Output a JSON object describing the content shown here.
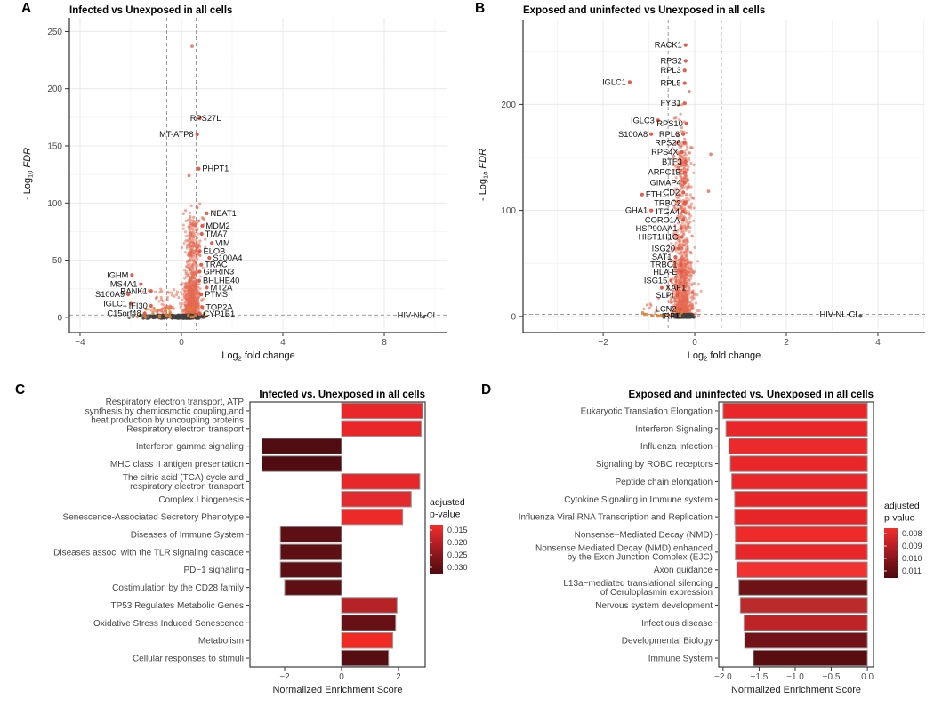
{
  "figure": {
    "background": "#ffffff"
  },
  "chart_data": [
    {
      "id": "A",
      "panel_letter": "A",
      "type": "scatter",
      "title": "Infected vs Unexposed in all cells",
      "xlabel": {
        "pre": "Log",
        "sub": "2",
        "post": " fold change"
      },
      "ylabel": {
        "pre": "- Log",
        "sub": "10",
        "post": " ",
        "italic": "FDR"
      },
      "xlim": [
        -4.42,
        10.49
      ],
      "ylim": [
        -11,
        262
      ],
      "xticks": [
        {
          "v": -4,
          "label": "−4"
        },
        {
          "v": 0,
          "label": "0"
        },
        {
          "v": 4,
          "label": "4"
        },
        {
          "v": 8,
          "label": "8"
        }
      ],
      "yticks": [
        {
          "v": 0,
          "label": "0"
        },
        {
          "v": 50,
          "label": "50"
        },
        {
          "v": 100,
          "label": "100"
        },
        {
          "v": 150,
          "label": "150"
        },
        {
          "v": 200,
          "label": "200"
        },
        {
          "v": 250,
          "label": "250"
        }
      ],
      "xminor": [
        -2,
        2,
        6,
        10
      ],
      "yminor": [
        25,
        75,
        125,
        175,
        225
      ],
      "vlines": [
        -0.58,
        0.58
      ],
      "hline": 2,
      "colors": {
        "point": "#e66a52",
        "labeled": "#e25540",
        "gray": "#404040",
        "orange": "#dd7f2f"
      },
      "seed": 11,
      "clusters": [
        {
          "n": 750,
          "cx": 0.42,
          "sx": 0.13,
          "y0": 0,
          "y1": 85,
          "pow": 2.6,
          "color": "#e66a52",
          "op": 0.5,
          "r": 1.6
        },
        {
          "n": 300,
          "cx": 0.4,
          "sx": 0.18,
          "y0": 0,
          "y1": 30,
          "pow": 1.6,
          "color": "#e66a52",
          "op": 0.5,
          "r": 1.6
        },
        {
          "n": 40,
          "cx": 0.55,
          "sx": 0.25,
          "y0": 55,
          "y1": 100,
          "pow": 1.2,
          "color": "#e66a52",
          "op": 0.6,
          "r": 1.6
        },
        {
          "n": 90,
          "cx": -0.75,
          "sx": 0.32,
          "y0": 0,
          "y1": 26,
          "pow": 2.0,
          "color": "#e66a52",
          "op": 0.55,
          "r": 1.6
        },
        {
          "n": 260,
          "cx": 0.2,
          "sx": 0.28,
          "y0": -1,
          "y1": 2,
          "pow": 1,
          "color": "#404040",
          "op": 0.75,
          "r": 1.7
        },
        {
          "n": 70,
          "cx": -0.95,
          "sx": 0.35,
          "y0": -1,
          "y1": 2,
          "pow": 1,
          "color": "#404040",
          "op": 0.7,
          "r": 1.7
        },
        {
          "n": 26,
          "cx": -0.3,
          "sx": 0.75,
          "y0": 0,
          "y1": 9,
          "pow": 1.6,
          "color": "#dd7f2f",
          "op": 0.85,
          "r": 1.7
        }
      ],
      "extra_points": [
        [
          0.42,
          237
        ],
        [
          0.3,
          124
        ],
        [
          0.62,
          96
        ]
      ],
      "genes": [
        [
          "RPS27L",
          0.72,
          174,
          "m",
          {
            "tx": 0.95
          }
        ],
        [
          "MT-ATP8",
          0.62,
          160,
          "e"
        ],
        [
          "PHPT1",
          0.68,
          130,
          "s"
        ],
        [
          "NEAT1",
          1.0,
          91,
          "s"
        ],
        [
          "MDM2",
          0.82,
          80,
          "s"
        ],
        [
          "TMA7",
          0.8,
          73,
          "s"
        ],
        [
          "VIM",
          1.2,
          65,
          "s"
        ],
        [
          "ELOB",
          0.72,
          58,
          "s"
        ],
        [
          "S100A4",
          1.1,
          52,
          "s"
        ],
        [
          "TRAC",
          0.78,
          46,
          "s"
        ],
        [
          "GPRIN3",
          0.72,
          40,
          "s"
        ],
        [
          "BHLHE40",
          0.7,
          32,
          "s"
        ],
        [
          "MT2A",
          1.0,
          26,
          "s"
        ],
        [
          "PTMS",
          0.78,
          20,
          "s"
        ],
        [
          "TOP2A",
          0.82,
          9,
          "s"
        ],
        [
          "CYP1B1",
          0.72,
          3,
          "s"
        ],
        [
          "IGHM",
          -1.95,
          37,
          "e"
        ],
        [
          "MS4A1",
          -1.6,
          29,
          "e"
        ],
        [
          "BANK1",
          -1.2,
          23,
          "e"
        ],
        [
          "S100A9",
          -2.1,
          20,
          "e"
        ],
        [
          "IGLC1",
          -2.0,
          12,
          "e"
        ],
        [
          "IFI30",
          -1.2,
          10,
          "e"
        ],
        [
          "C15orf48",
          -1.45,
          3.5,
          "e"
        ],
        [
          "HIV-NL-CI",
          9.55,
          0.4,
          "e",
          {
            "tx": 10.0,
            "ty": 2,
            "color": "#555555"
          }
        ]
      ]
    },
    {
      "id": "B",
      "panel_letter": "B",
      "type": "scatter",
      "title": "Exposed and uninfected vs Unexposed in all cells",
      "xlabel": {
        "pre": "Log",
        "sub": "2",
        "post": " fold change"
      },
      "ylabel": {
        "pre": "- Log",
        "sub": "10",
        "post": " ",
        "italic": "FDR"
      },
      "xlim": [
        -3.75,
        5.03
      ],
      "ylim": [
        -12.7,
        280
      ],
      "xticks": [
        {
          "v": -2,
          "label": "−2"
        },
        {
          "v": 0,
          "label": "0"
        },
        {
          "v": 2,
          "label": "2"
        },
        {
          "v": 4,
          "label": "4"
        }
      ],
      "yticks": [
        {
          "v": 0,
          "label": "0"
        },
        {
          "v": 100,
          "label": "100"
        },
        {
          "v": 200,
          "label": "200"
        }
      ],
      "xminor": [
        -3,
        -1,
        1,
        3,
        5
      ],
      "yminor": [
        50,
        150,
        250
      ],
      "vlines": [
        -0.58,
        0.58
      ],
      "hline": 2,
      "colors": {
        "point": "#e66a52",
        "labeled": "#e25540",
        "gray": "#404040",
        "orange": "#dd7f2f"
      },
      "seed": 23,
      "clusters": [
        {
          "n": 900,
          "cx": -0.27,
          "sx": 0.09,
          "y0": 0,
          "y1": 165,
          "pow": 2.2,
          "color": "#e66a52",
          "op": 0.5,
          "r": 1.6
        },
        {
          "n": 350,
          "cx": -0.25,
          "sx": 0.13,
          "y0": 0,
          "y1": 55,
          "pow": 1.8,
          "color": "#e66a52",
          "op": 0.5,
          "r": 1.6
        },
        {
          "n": 30,
          "cx": -0.3,
          "sx": 0.12,
          "y0": 140,
          "y1": 200,
          "pow": 1.3,
          "color": "#e66a52",
          "op": 0.6,
          "r": 1.6
        },
        {
          "n": 12,
          "cx": -0.9,
          "sx": 0.3,
          "y0": 0,
          "y1": 30,
          "pow": 1.5,
          "color": "#e66a52",
          "op": 0.6,
          "r": 1.6
        },
        {
          "n": 280,
          "cx": -0.25,
          "sx": 0.1,
          "y0": -1,
          "y1": 2,
          "pow": 1,
          "color": "#404040",
          "op": 0.75,
          "r": 1.7
        },
        {
          "n": 10,
          "cx": -0.8,
          "sx": 0.25,
          "y0": 0,
          "y1": 4,
          "pow": 1,
          "color": "#dd7f2f",
          "op": 0.85,
          "r": 1.7
        }
      ],
      "extra_points": [
        [
          0.35,
          153
        ],
        [
          -0.12,
          212
        ],
        [
          0.3,
          118
        ]
      ],
      "genes": [
        [
          "RACK1",
          -0.2,
          256,
          "e"
        ],
        [
          "RPS2",
          -0.2,
          241,
          "e"
        ],
        [
          "RPL3",
          -0.22,
          232,
          "e"
        ],
        [
          "RPL5",
          -0.22,
          220,
          "e"
        ],
        [
          "IGLC1",
          -1.42,
          221,
          "e"
        ],
        [
          "FYB1",
          -0.22,
          201,
          "e"
        ],
        [
          "IGLC3",
          -0.8,
          185,
          "e"
        ],
        [
          "RPS10",
          -0.18,
          182,
          "e"
        ],
        [
          "S100A8",
          -0.95,
          172,
          "e"
        ],
        [
          "RPL6",
          -0.25,
          172,
          "e"
        ],
        [
          "RPS26",
          -0.22,
          164,
          "e"
        ],
        [
          "RPS4X",
          -0.28,
          155,
          "e"
        ],
        [
          "BTF3",
          -0.2,
          146,
          "e"
        ],
        [
          "ARPC1B",
          -0.22,
          136,
          "e"
        ],
        [
          "GIMAP4",
          -0.22,
          126,
          "e"
        ],
        [
          "CD2",
          -0.25,
          117,
          "e"
        ],
        [
          "FTH1",
          -1.15,
          115,
          "s"
        ],
        [
          "TRBC2",
          -0.22,
          107,
          "e"
        ],
        [
          "IGHA1",
          -0.95,
          100,
          "e"
        ],
        [
          "ITGA4",
          -0.25,
          99,
          "e"
        ],
        [
          "CORO1A",
          -0.25,
          91,
          "e"
        ],
        [
          "HSP90AA1",
          -0.3,
          83,
          "e"
        ],
        [
          "HIST1H1C",
          -0.28,
          75,
          "e"
        ],
        [
          "ISG20",
          -0.35,
          64,
          "e"
        ],
        [
          "SAT1",
          -0.42,
          56,
          "e"
        ],
        [
          "TRBC1",
          -0.3,
          49,
          "e"
        ],
        [
          "HLA-E",
          -0.3,
          42,
          "e"
        ],
        [
          "ISG15",
          -0.52,
          34,
          "e"
        ],
        [
          "XAF1",
          -0.72,
          27,
          "s"
        ],
        [
          "SLPI",
          -0.38,
          20,
          "e"
        ],
        [
          "LCN2",
          -0.32,
          7,
          "e"
        ],
        [
          "IRF1",
          -0.8,
          0.5,
          "s",
          {
            "color": "#dd7f2f"
          }
        ],
        [
          "HIV-NL-CI",
          3.62,
          0.4,
          "e",
          {
            "tx": 3.55,
            "ty": 2,
            "color": "#555555"
          }
        ]
      ]
    },
    {
      "id": "C",
      "panel_letter": "C",
      "type": "bar",
      "title": "Infected vs. Unexposed in all cells",
      "xlabel": "Normalized Enrichment Score",
      "xlim": [
        -3.22,
        2.94
      ],
      "xticks": [
        {
          "v": -2,
          "label": "−2"
        },
        {
          "v": 0,
          "label": "0"
        },
        {
          "v": 2,
          "label": "2"
        }
      ],
      "legend": {
        "title_lines": [
          "adjusted",
          "p-value"
        ],
        "labels": [
          "0.015",
          "0.020",
          "0.025",
          "0.030"
        ],
        "stops": [
          "#f0302b",
          "#bb2026",
          "#7e151a",
          "#4c0b0f"
        ]
      },
      "items": [
        {
          "label": [
            "Respiratory electron transport, ATP",
            "synthesis by chemiosmotic coupling,and",
            "heat production by uncoupling proteins"
          ],
          "value": 2.85,
          "color": "#e9262a"
        },
        {
          "label": [
            "Respiratory electron transport"
          ],
          "value": 2.8,
          "color": "#e9262a"
        },
        {
          "label": [
            "Interferon gamma signaling"
          ],
          "value": -2.8,
          "color": "#510c11"
        },
        {
          "label": [
            "MHC class II antigen presentation"
          ],
          "value": -2.8,
          "color": "#510c11"
        },
        {
          "label": [
            "The citric acid (TCA) cycle and",
            "respiratory electron transport"
          ],
          "value": 2.75,
          "color": "#e72629"
        },
        {
          "label": [
            "Complex I biogenesis"
          ],
          "value": 2.45,
          "color": "#e32a2e"
        },
        {
          "label": [
            "Senescence-Associated Secretory Phenotype"
          ],
          "value": 2.15,
          "color": "#ec2a28"
        },
        {
          "label": [
            "Diseases of Immune System"
          ],
          "value": -2.15,
          "color": "#5d0f14"
        },
        {
          "label": [
            "Diseases assoc. with the TLR signaling cascade"
          ],
          "value": -2.15,
          "color": "#5d0f14"
        },
        {
          "label": [
            "PD−1 signaling"
          ],
          "value": -2.15,
          "color": "#5d0f14"
        },
        {
          "label": [
            "Costimulation by the CD28 family"
          ],
          "value": -2.0,
          "color": "#5d0f14"
        },
        {
          "label": [
            "TP53 Regulates Metabolic Genes"
          ],
          "value": 1.95,
          "color": "#b52327"
        },
        {
          "label": [
            "Oxidative Stress Induced Senescence"
          ],
          "value": 1.9,
          "color": "#661015"
        },
        {
          "label": [
            "Metabolism"
          ],
          "value": 1.8,
          "color": "#f02b25"
        },
        {
          "label": [
            "Cellular responses to stimuli"
          ],
          "value": 1.65,
          "color": "#570e12"
        }
      ]
    },
    {
      "id": "D",
      "panel_letter": "D",
      "type": "bar",
      "title": "Exposed and uninfected vs. Unexposed in all cells",
      "xlabel": "Normalized Enrichment Score",
      "xlim": [
        -2.06,
        0.085
      ],
      "xticks": [
        {
          "v": -2,
          "label": "−2.0"
        },
        {
          "v": -1.5,
          "label": "−1.5"
        },
        {
          "v": -1,
          "label": "−1.0"
        },
        {
          "v": -0.5,
          "label": "−0.5"
        },
        {
          "v": 0,
          "label": "0.0"
        }
      ],
      "legend": {
        "title_lines": [
          "adjusted",
          "p-value"
        ],
        "labels": [
          "0.008",
          "0.009",
          "0.010",
          "0.011"
        ],
        "stops": [
          "#f0302b",
          "#bb2026",
          "#7e151a",
          "#4c0b0f"
        ]
      },
      "items": [
        {
          "label": [
            "Eukaryotic Translation Elongation"
          ],
          "value": -2.0,
          "color": "#e9262a"
        },
        {
          "label": [
            "Interferon Signaling"
          ],
          "value": -1.96,
          "color": "#e9262a"
        },
        {
          "label": [
            "Influenza Infection"
          ],
          "value": -1.92,
          "color": "#eb2a2b"
        },
        {
          "label": [
            "Signaling by ROBO receptors"
          ],
          "value": -1.9,
          "color": "#e9262a"
        },
        {
          "label": [
            "Peptide chain elongation"
          ],
          "value": -1.88,
          "color": "#e9262a"
        },
        {
          "label": [
            "Cytokine Signaling in Immune system"
          ],
          "value": -1.84,
          "color": "#e62528"
        },
        {
          "label": [
            "Influenza Viral RNA Transcription and Replication"
          ],
          "value": -1.84,
          "color": "#e62528"
        },
        {
          "label": [
            "Nonsense−Mediated Decay (NMD)"
          ],
          "value": -1.83,
          "color": "#ed2c2a"
        },
        {
          "label": [
            "Nonsense Mediated Decay (NMD) enhanced",
            "by the Exon Junction Complex (EJC)"
          ],
          "value": -1.83,
          "color": "#e9262a"
        },
        {
          "label": [
            "Axon guidance"
          ],
          "value": -1.81,
          "color": "#f23231"
        },
        {
          "label": [
            "L13a−mediated translational silencing",
            "of Ceruloplasmin expression"
          ],
          "value": -1.78,
          "color": "#6f1216"
        },
        {
          "label": [
            "Nervous system development"
          ],
          "value": -1.76,
          "color": "#bc2b2c"
        },
        {
          "label": [
            "Infectious disease"
          ],
          "value": -1.71,
          "color": "#bd2427"
        },
        {
          "label": [
            "Developmental Biology"
          ],
          "value": -1.7,
          "color": "#711318"
        },
        {
          "label": [
            "Immune System"
          ],
          "value": -1.58,
          "color": "#580d11"
        }
      ]
    }
  ]
}
